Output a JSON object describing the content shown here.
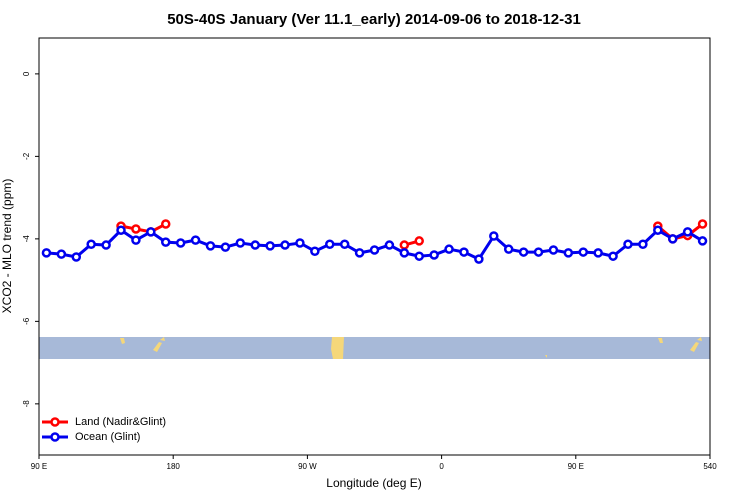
{
  "chart_data": {
    "type": "line",
    "title": "50S-40S January (Ver 11.1_early)   2014-09-06 to 2018-12-31",
    "x_label": "Longitude (deg E)",
    "y_label": "XCO2 - MLO trend (ppm)",
    "x": [
      95,
      105,
      115,
      125,
      135,
      145,
      155,
      165,
      175,
      185,
      195,
      205,
      215,
      225,
      235,
      245,
      255,
      265,
      275,
      285,
      295,
      305,
      315,
      325,
      335,
      345,
      355,
      365,
      375,
      385,
      395,
      405,
      415,
      425,
      435,
      445,
      455,
      465,
      475,
      485,
      495,
      505,
      515,
      525,
      535
    ],
    "series": [
      {
        "name": "Land (Nadir&Glint)",
        "color": "#ff0000",
        "values": [
          null,
          null,
          null,
          null,
          null,
          -3.69,
          -3.76,
          -3.83,
          -3.64,
          null,
          null,
          null,
          null,
          null,
          null,
          null,
          null,
          null,
          null,
          null,
          null,
          null,
          null,
          null,
          -4.15,
          -4.05,
          null,
          null,
          null,
          null,
          null,
          null,
          null,
          null,
          null,
          null,
          null,
          null,
          null,
          null,
          null,
          -3.69,
          -4.0,
          -3.92,
          -3.64
        ]
      },
      {
        "name": "Ocean (Glint)",
        "color": "#0000ee",
        "values": [
          -4.34,
          -4.37,
          -4.44,
          -4.13,
          -4.15,
          -3.79,
          -4.03,
          -3.83,
          -4.08,
          -4.1,
          -4.03,
          -4.17,
          -4.2,
          -4.1,
          -4.15,
          -4.17,
          -4.15,
          -4.1,
          -4.3,
          -4.13,
          -4.13,
          -4.34,
          -4.27,
          -4.15,
          -4.34,
          -4.42,
          -4.39,
          -4.25,
          -4.32,
          -4.49,
          -3.93,
          -4.25,
          -4.32,
          -4.32,
          -4.27,
          -4.34,
          -4.32,
          -4.34,
          -4.42,
          -4.13,
          -4.13,
          -3.79,
          -4.0,
          -3.83,
          -4.05
        ]
      }
    ],
    "xlim": [
      90,
      540
    ],
    "xticks": [
      {
        "value": 90,
        "label": "90 E"
      },
      180,
      {
        "value": 270,
        "label": "90 W"
      },
      {
        "value": 360,
        "label": "0"
      },
      {
        "value": 450,
        "label": "90 E"
      },
      540
    ],
    "ylim": [
      -9.24,
      0.87
    ],
    "yticks": [
      0,
      -2,
      -4,
      -6,
      -8
    ],
    "legend": "bottom-left"
  }
}
